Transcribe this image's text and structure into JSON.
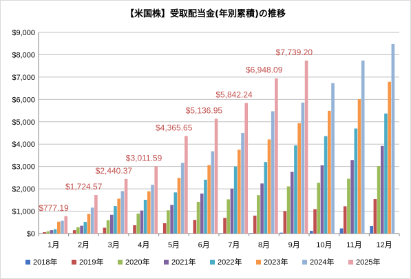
{
  "chart_data": {
    "type": "bar",
    "title": "【米国株】受取配当金(年別累積)の推移",
    "categories": [
      "1月",
      "2月",
      "3月",
      "4月",
      "5月",
      "6月",
      "7月",
      "8月",
      "9月",
      "10月",
      "11月",
      "12月"
    ],
    "y_tick_labels": [
      "$0",
      "$1,000",
      "$2,000",
      "$3,000",
      "$4,000",
      "$5,000",
      "$6,000",
      "$7,000",
      "$8,000",
      "$9,000"
    ],
    "ylim": [
      0,
      9000
    ],
    "y_tick_step": 1000,
    "grid": true,
    "legend_position": "bottom",
    "series": [
      {
        "name": "2018年",
        "color": "#4472c4",
        "values": [
          0,
          0,
          0,
          0,
          0,
          0,
          20,
          25,
          40,
          120,
          230,
          340
        ]
      },
      {
        "name": "2019年",
        "color": "#c0504d",
        "values": [
          60,
          150,
          260,
          370,
          460,
          610,
          700,
          800,
          1000,
          1090,
          1220,
          1540
        ]
      },
      {
        "name": "2020年",
        "color": "#9bbb59",
        "values": [
          100,
          280,
          600,
          890,
          1040,
          1420,
          1530,
          1720,
          2110,
          2270,
          2450,
          3020
        ]
      },
      {
        "name": "2021年",
        "color": "#8064a2",
        "values": [
          150,
          350,
          840,
          1030,
          1280,
          1790,
          2010,
          2240,
          2760,
          3050,
          3290,
          3920
        ]
      },
      {
        "name": "2022年",
        "color": "#4bacc6",
        "values": [
          190,
          520,
          1230,
          1510,
          1840,
          2410,
          3000,
          3200,
          3940,
          4360,
          4700,
          5370
        ]
      },
      {
        "name": "2023年",
        "color": "#f79646",
        "values": [
          530,
          880,
          1560,
          1890,
          2490,
          3060,
          3750,
          4210,
          4940,
          5490,
          6010,
          6790
        ]
      },
      {
        "name": "2024年",
        "color": "#95b3d7",
        "values": [
          570,
          1160,
          1900,
          2180,
          3160,
          3680,
          4500,
          5470,
          5860,
          6730,
          7740,
          8480
        ]
      },
      {
        "name": "2025年",
        "color": "#e6a0a6",
        "values": [
          777.19,
          1724.57,
          2440.37,
          3011.59,
          4365.65,
          5136.95,
          5842.24,
          6948.09,
          7739.2,
          null,
          null,
          null
        ]
      }
    ],
    "annotations": [
      {
        "category": "1月",
        "text": "$777.19"
      },
      {
        "category": "2月",
        "text": "$1,724.57"
      },
      {
        "category": "3月",
        "text": "$2,440.37"
      },
      {
        "category": "4月",
        "text": "$3,011.59"
      },
      {
        "category": "5月",
        "text": "$4,365.65"
      },
      {
        "category": "6月",
        "text": "$5,136.95"
      },
      {
        "category": "7月",
        "text": "$5,842.24"
      },
      {
        "category": "8月",
        "text": "$6,948.09"
      },
      {
        "category": "9月",
        "text": "$7,739.20"
      }
    ],
    "annotation_color": "#c0504d"
  }
}
